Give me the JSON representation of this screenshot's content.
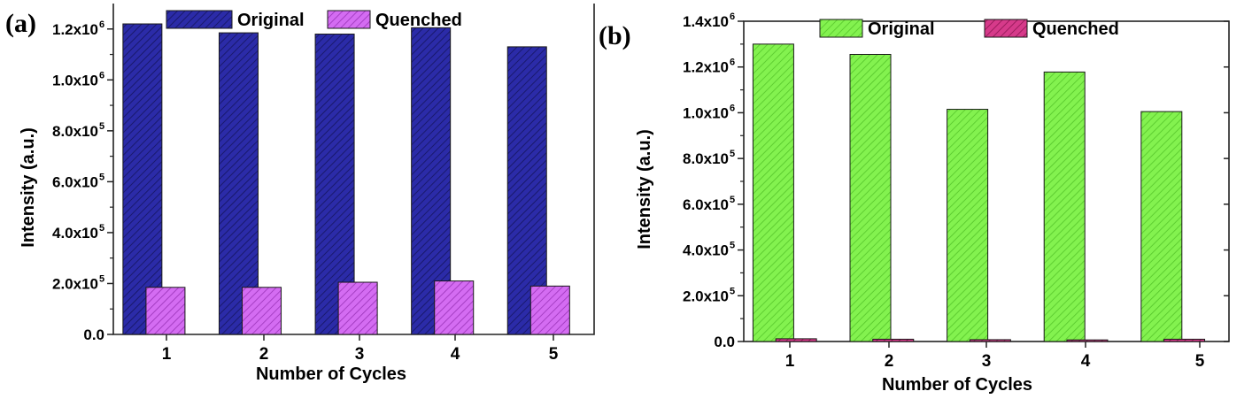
{
  "chart_data": [
    {
      "type": "bar",
      "panel_label": "(a)",
      "categories": [
        "1",
        "2",
        "3",
        "4",
        "5"
      ],
      "series": [
        {
          "name": "Original",
          "values": [
            1220000,
            1185000,
            1180000,
            1205000,
            1130000
          ]
        },
        {
          "name": "Quenched",
          "values": [
            185000,
            185000,
            205000,
            210000,
            190000
          ]
        }
      ],
      "colors": {
        "Original": "#1f1f8f",
        "Quenched": "#cc55ee"
      },
      "xlabel": "Number of Cycles",
      "ylabel": "Intensity (a.u.)",
      "ylim": [
        0,
        1300000
      ],
      "yticks": [
        {
          "value": 0,
          "mantissa": "0.0",
          "exp": ""
        },
        {
          "value": 200000,
          "mantissa": "2.0x10",
          "exp": "5"
        },
        {
          "value": 400000,
          "mantissa": "4.0x10",
          "exp": "5"
        },
        {
          "value": 600000,
          "mantissa": "6.0x10",
          "exp": "5"
        },
        {
          "value": 800000,
          "mantissa": "8.0x10",
          "exp": "5"
        },
        {
          "value": 1000000,
          "mantissa": "1.0x10",
          "exp": "6"
        },
        {
          "value": 1200000,
          "mantissa": "1.2x10",
          "exp": "6"
        }
      ],
      "legend": "top",
      "grid": false
    },
    {
      "type": "bar",
      "panel_label": "(b)",
      "categories": [
        "1",
        "2",
        "3",
        "4",
        "5"
      ],
      "series": [
        {
          "name": "Original",
          "values": [
            1300000,
            1255000,
            1015000,
            1178000,
            1005000
          ]
        },
        {
          "name": "Quenched",
          "values": [
            12000,
            10000,
            8000,
            7000,
            10000
          ]
        }
      ],
      "colors": {
        "Original": "#77ee44",
        "Quenched": "#cc2277"
      },
      "xlabel": "Number of Cycles",
      "ylabel": "Intensity (a.u.)",
      "ylim": [
        0,
        1400000
      ],
      "yticks": [
        {
          "value": 0,
          "mantissa": "0.0",
          "exp": ""
        },
        {
          "value": 200000,
          "mantissa": "2.0x10",
          "exp": "5"
        },
        {
          "value": 400000,
          "mantissa": "4.0x10",
          "exp": "5"
        },
        {
          "value": 600000,
          "mantissa": "6.0x10",
          "exp": "5"
        },
        {
          "value": 800000,
          "mantissa": "8.0x10",
          "exp": "5"
        },
        {
          "value": 1000000,
          "mantissa": "1.0x10",
          "exp": "6"
        },
        {
          "value": 1200000,
          "mantissa": "1.2x10",
          "exp": "6"
        },
        {
          "value": 1400000,
          "mantissa": "1.4x10",
          "exp": "6"
        }
      ],
      "legend": "top",
      "grid": false
    }
  ]
}
